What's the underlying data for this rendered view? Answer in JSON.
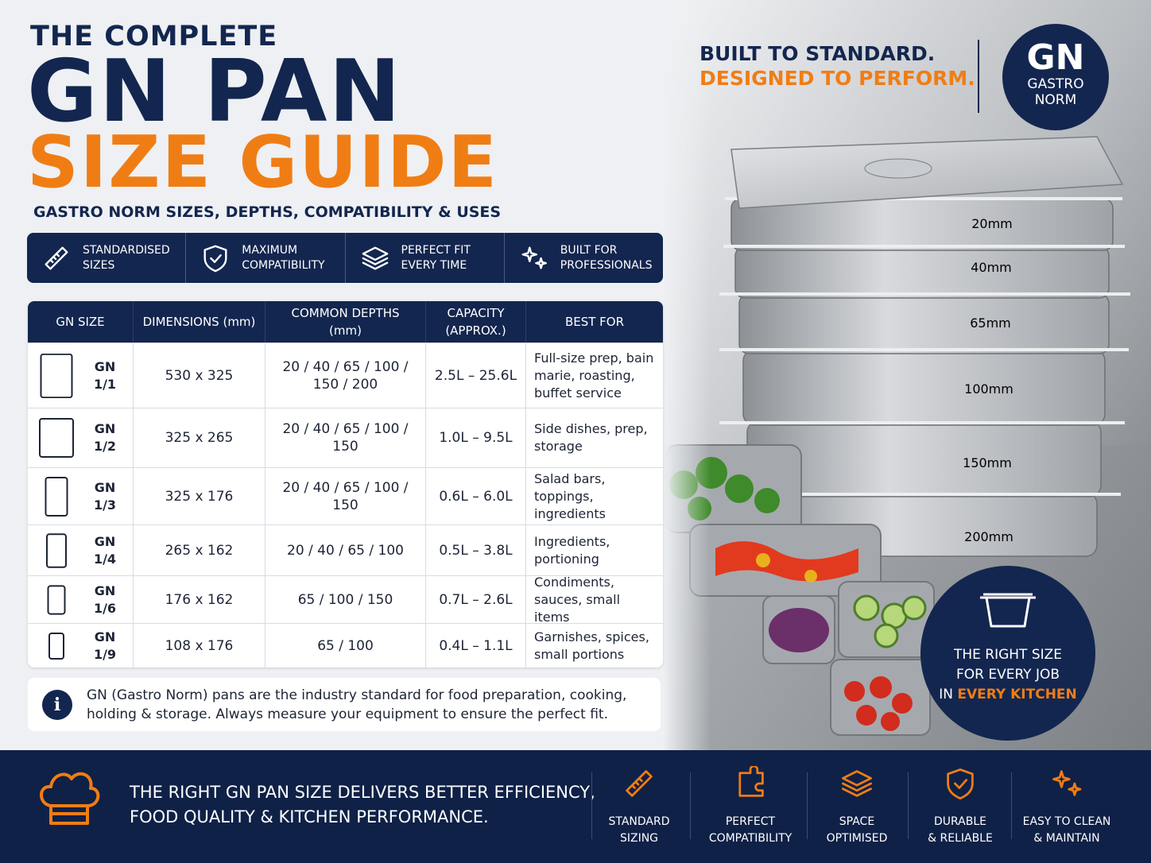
{
  "header": {
    "pre_title": "THE COMPLETE",
    "title_line1": "GN PAN",
    "title_line2": "SIZE GUIDE",
    "subtitle": "GASTRO NORM SIZES, DEPTHS, COMPATIBILITY & USES"
  },
  "features": [
    {
      "lines": [
        "STANDARDISED",
        "SIZES"
      ]
    },
    {
      "lines": [
        "MAXIMUM",
        "COMPATIBILITY"
      ]
    },
    {
      "lines": [
        "PERFECT FIT",
        "EVERY TIME"
      ]
    },
    {
      "lines": [
        "BUILT FOR",
        "PROFESSIONALS"
      ]
    }
  ],
  "table": {
    "headers": [
      "GN SIZE",
      "DIMENSIONS (mm)",
      "COMMON DEPTHS (mm)",
      "CAPACITY (APPROX.)",
      "BEST FOR"
    ],
    "rows": [
      [
        "GN 1/1",
        "530 x 325",
        "20 / 40 / 65 / 100 / 150 / 200",
        "2.5L – 25.6L",
        "Full-size prep, bain marie, roasting, buffet service"
      ],
      [
        "GN 1/2",
        "325 x 265",
        "20 / 40 / 65 / 100 / 150",
        "1.0L – 9.5L",
        "Side dishes, prep, storage"
      ],
      [
        "GN 1/3",
        "325 x 176",
        "20 / 40 / 65 / 100 / 150",
        "0.6L – 6.0L",
        "Salad bars, toppings, ingredients"
      ],
      [
        "GN 1/4",
        "265 x 162",
        "20 / 40 / 65 / 100",
        "0.5L – 3.8L",
        "Ingredients, portioning"
      ],
      [
        "GN 1/6",
        "176 x 162",
        "65 / 100 / 150",
        "0.7L – 2.6L",
        "Condiments, sauces, small items"
      ],
      [
        "GN 1/9",
        "108 x 176",
        "65 / 100",
        "0.4L – 1.1L",
        "Garnishes, spices, small portions"
      ]
    ]
  },
  "note": {
    "icon": "i",
    "text": "GN (Gastro Norm) pans are the industry standard for food preparation, cooking, holding & storage. Always measure your equipment to ensure the perfect fit."
  },
  "tagline": {
    "line1": "BUILT TO STANDARD.",
    "line2": "DESIGNED TO PERFORM."
  },
  "badge": {
    "title": "GN",
    "lines": [
      "GASTRO",
      "NORM"
    ]
  },
  "depth_labels": [
    "20mm",
    "40mm",
    "65mm",
    "100mm",
    "150mm",
    "200mm"
  ],
  "callout": {
    "lines": [
      "THE RIGHT SIZE",
      "FOR EVERY JOB"
    ],
    "last_prefix": "IN",
    "last_highlight": "EVERY KITCHEN"
  },
  "footer": {
    "message": [
      "THE RIGHT GN PAN SIZE DELIVERS BETTER EFFICIENCY,",
      "FOOD QUALITY & KITCHEN PERFORMANCE."
    ],
    "features": [
      {
        "lines": [
          "STANDARD",
          "SIZING"
        ]
      },
      {
        "lines": [
          "PERFECT",
          "COMPATIBILITY"
        ]
      },
      {
        "lines": [
          "SPACE",
          "OPTIMISED"
        ]
      },
      {
        "lines": [
          "DURABLE",
          "& RELIABLE"
        ]
      },
      {
        "lines": [
          "EASY TO CLEAN",
          "& MAINTAIN"
        ]
      }
    ]
  }
}
